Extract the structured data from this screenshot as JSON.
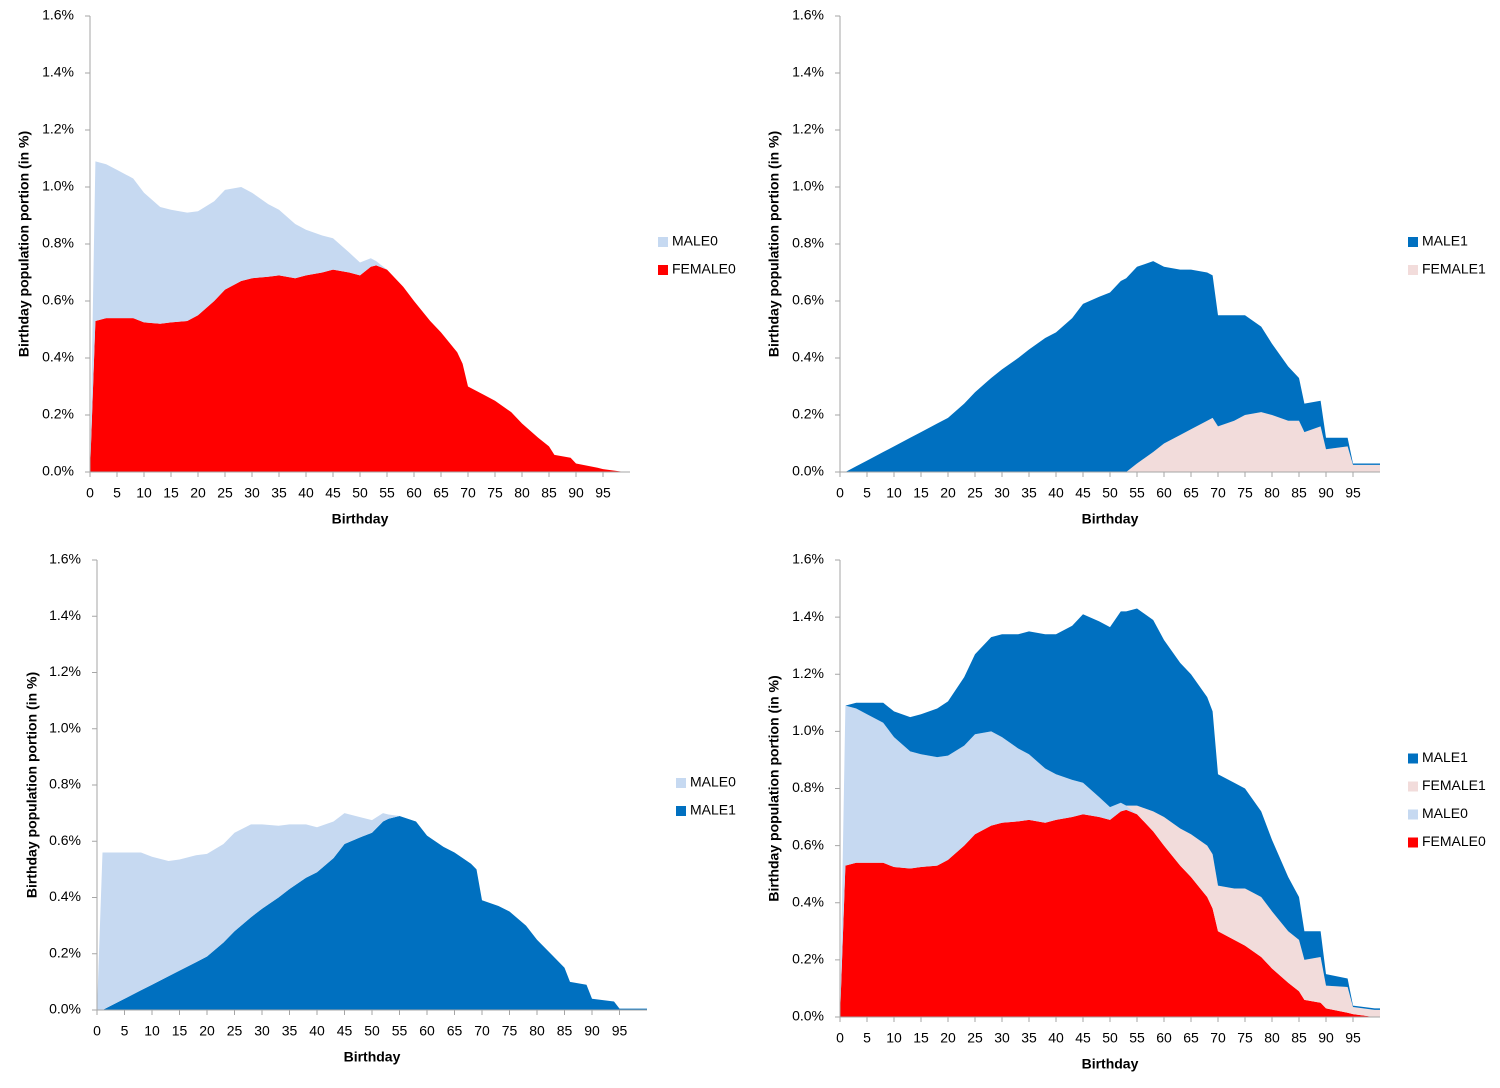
{
  "chart_data": [
    {
      "type": "area",
      "stacked": true,
      "xlabel": "Birthday",
      "ylabel": "Birthday population portion  (in %)",
      "legend": "right",
      "x": [
        0,
        1,
        3,
        5,
        8,
        10,
        13,
        15,
        18,
        20,
        23,
        25,
        28,
        30,
        33,
        35,
        38,
        40,
        43,
        45,
        48,
        50,
        52,
        53,
        55,
        58,
        60,
        63,
        65,
        68,
        69,
        70,
        73,
        75,
        78,
        80,
        83,
        85,
        86,
        89,
        90,
        94,
        95,
        99,
        100
      ],
      "xlim": [
        0,
        100
      ],
      "xticks": [
        0,
        5,
        10,
        15,
        20,
        25,
        30,
        35,
        40,
        45,
        50,
        55,
        60,
        65,
        70,
        75,
        80,
        85,
        90,
        95
      ],
      "ylim": [
        0,
        1.6
      ],
      "yticks": [
        {
          "value": 0,
          "label": "0.0%"
        },
        {
          "value": 0.2,
          "label": "0.2%"
        },
        {
          "value": 0.4,
          "label": "0.4%"
        },
        {
          "value": 0.6,
          "label": "0.6%"
        },
        {
          "value": 0.8,
          "label": "0.8%"
        },
        {
          "value": 1.0,
          "label": "1.0%"
        },
        {
          "value": 1.2,
          "label": "1.2%"
        },
        {
          "value": 1.4,
          "label": "1.4%"
        },
        {
          "value": 1.6,
          "label": "1.6%"
        }
      ],
      "series": [
        {
          "name": "MALE0",
          "color": "#c6d9f1",
          "values": [
            0,
            0.56,
            0.54,
            0.52,
            0.49,
            0.455,
            0.41,
            0.395,
            0.38,
            0.365,
            0.35,
            0.35,
            0.33,
            0.3,
            0.255,
            0.23,
            0.19,
            0.16,
            0.13,
            0.11,
            0.07,
            0.045,
            0.03,
            0.015,
            0,
            0,
            0,
            0,
            0,
            0,
            0,
            0,
            0,
            0,
            0,
            0,
            0,
            0,
            0,
            0,
            0,
            0,
            0,
            0,
            0
          ]
        },
        {
          "name": "FEMALE0",
          "color": "#ff0000",
          "values": [
            0,
            0.53,
            0.54,
            0.54,
            0.54,
            0.525,
            0.52,
            0.525,
            0.53,
            0.55,
            0.6,
            0.64,
            0.67,
            0.68,
            0.685,
            0.69,
            0.68,
            0.69,
            0.7,
            0.71,
            0.7,
            0.69,
            0.72,
            0.725,
            0.71,
            0.65,
            0.6,
            0.53,
            0.49,
            0.42,
            0.38,
            0.3,
            0.27,
            0.25,
            0.21,
            0.17,
            0.12,
            0.09,
            0.06,
            0.05,
            0.03,
            0.015,
            0.01,
            0,
            0
          ]
        }
      ]
    },
    {
      "type": "area",
      "stacked": true,
      "xlabel": "Birthday",
      "ylabel": "Birthday population portion  (in %)",
      "legend": "right",
      "x": [
        0,
        1,
        3,
        5,
        8,
        10,
        13,
        15,
        18,
        20,
        23,
        25,
        28,
        30,
        33,
        35,
        38,
        40,
        43,
        45,
        48,
        50,
        52,
        53,
        55,
        58,
        60,
        63,
        65,
        68,
        69,
        70,
        73,
        75,
        78,
        80,
        83,
        85,
        86,
        89,
        90,
        94,
        95,
        99,
        100
      ],
      "xlim": [
        0,
        100
      ],
      "xticks": [
        0,
        5,
        10,
        15,
        20,
        25,
        30,
        35,
        40,
        45,
        50,
        55,
        60,
        65,
        70,
        75,
        80,
        85,
        90,
        95
      ],
      "ylim": [
        0,
        1.6
      ],
      "yticks": [
        {
          "value": 0,
          "label": "0.0%"
        },
        {
          "value": 0.2,
          "label": "0.2%"
        },
        {
          "value": 0.4,
          "label": "0.4%"
        },
        {
          "value": 0.6,
          "label": "0.6%"
        },
        {
          "value": 0.8,
          "label": "0.8%"
        },
        {
          "value": 1.0,
          "label": "1.0%"
        },
        {
          "value": 1.2,
          "label": "1.2%"
        },
        {
          "value": 1.4,
          "label": "1.4%"
        },
        {
          "value": 1.6,
          "label": "1.6%"
        }
      ],
      "series": [
        {
          "name": "MALE1",
          "color": "#0070c0",
          "values": [
            0,
            0,
            0.02,
            0.04,
            0.07,
            0.09,
            0.12,
            0.14,
            0.17,
            0.19,
            0.24,
            0.28,
            0.33,
            0.36,
            0.4,
            0.43,
            0.47,
            0.49,
            0.54,
            0.59,
            0.615,
            0.63,
            0.67,
            0.68,
            0.69,
            0.67,
            0.62,
            0.58,
            0.56,
            0.52,
            0.5,
            0.39,
            0.37,
            0.35,
            0.3,
            0.25,
            0.19,
            0.15,
            0.1,
            0.09,
            0.04,
            0.03,
            0.005,
            0.005,
            0.005
          ]
        },
        {
          "name": "FEMALE1",
          "color": "#f2dcdb",
          "values": [
            0,
            0,
            0,
            0,
            0,
            0,
            0,
            0,
            0,
            0,
            0,
            0,
            0,
            0,
            0,
            0,
            0,
            0,
            0,
            0,
            0,
            0,
            0,
            0,
            0.03,
            0.07,
            0.1,
            0.13,
            0.15,
            0.18,
            0.19,
            0.16,
            0.18,
            0.2,
            0.21,
            0.2,
            0.18,
            0.18,
            0.14,
            0.16,
            0.08,
            0.09,
            0.025,
            0.025,
            0.025
          ]
        }
      ]
    },
    {
      "type": "area",
      "stacked": true,
      "xlabel": "Birthday",
      "ylabel": "Birthday population portion  (in %)",
      "legend": "right",
      "x": [
        0,
        1,
        3,
        5,
        8,
        10,
        13,
        15,
        18,
        20,
        23,
        25,
        28,
        30,
        33,
        35,
        38,
        40,
        43,
        45,
        48,
        50,
        52,
        53,
        55,
        58,
        60,
        63,
        65,
        68,
        69,
        70,
        73,
        75,
        78,
        80,
        83,
        85,
        86,
        89,
        90,
        94,
        95,
        99,
        100
      ],
      "xlim": [
        0,
        100
      ],
      "xticks": [
        0,
        5,
        10,
        15,
        20,
        25,
        30,
        35,
        40,
        45,
        50,
        55,
        60,
        65,
        70,
        75,
        80,
        85,
        90,
        95
      ],
      "ylim": [
        0,
        1.6
      ],
      "yticks": [
        {
          "value": 0,
          "label": "0.0%"
        },
        {
          "value": 0.2,
          "label": "0.2%"
        },
        {
          "value": 0.4,
          "label": "0.4%"
        },
        {
          "value": 0.6,
          "label": "0.6%"
        },
        {
          "value": 0.8,
          "label": "0.8%"
        },
        {
          "value": 1.0,
          "label": "1.0%"
        },
        {
          "value": 1.2,
          "label": "1.2%"
        },
        {
          "value": 1.4,
          "label": "1.4%"
        },
        {
          "value": 1.6,
          "label": "1.6%"
        }
      ],
      "series": [
        {
          "name": "MALE0",
          "color": "#c6d9f1",
          "values": [
            0,
            0.56,
            0.54,
            0.52,
            0.49,
            0.455,
            0.41,
            0.395,
            0.38,
            0.365,
            0.35,
            0.35,
            0.33,
            0.3,
            0.255,
            0.23,
            0.19,
            0.16,
            0.13,
            0.11,
            0.07,
            0.045,
            0.03,
            0.015,
            0,
            0,
            0,
            0,
            0,
            0,
            0,
            0,
            0,
            0,
            0,
            0,
            0,
            0,
            0,
            0,
            0,
            0,
            0,
            0,
            0
          ]
        },
        {
          "name": "MALE1",
          "color": "#0070c0",
          "values": [
            0,
            0,
            0.02,
            0.04,
            0.07,
            0.09,
            0.12,
            0.14,
            0.17,
            0.19,
            0.24,
            0.28,
            0.33,
            0.36,
            0.4,
            0.43,
            0.47,
            0.49,
            0.54,
            0.59,
            0.615,
            0.63,
            0.67,
            0.68,
            0.69,
            0.67,
            0.62,
            0.58,
            0.56,
            0.52,
            0.5,
            0.39,
            0.37,
            0.35,
            0.3,
            0.25,
            0.19,
            0.15,
            0.1,
            0.09,
            0.04,
            0.03,
            0.005,
            0.005,
            0.005
          ]
        }
      ]
    },
    {
      "type": "area",
      "stacked": true,
      "xlabel": "Birthday",
      "ylabel": "Birthday population portion  (in %)",
      "legend": "right",
      "x": [
        0,
        1,
        3,
        5,
        8,
        10,
        13,
        15,
        18,
        20,
        23,
        25,
        28,
        30,
        33,
        35,
        38,
        40,
        43,
        45,
        48,
        50,
        52,
        53,
        55,
        58,
        60,
        63,
        65,
        68,
        69,
        70,
        73,
        75,
        78,
        80,
        83,
        85,
        86,
        89,
        90,
        94,
        95,
        99,
        100
      ],
      "xlim": [
        0,
        100
      ],
      "xticks": [
        0,
        5,
        10,
        15,
        20,
        25,
        30,
        35,
        40,
        45,
        50,
        55,
        60,
        65,
        70,
        75,
        80,
        85,
        90,
        95
      ],
      "ylim": [
        0,
        1.6
      ],
      "yticks": [
        {
          "value": 0,
          "label": "0.0%"
        },
        {
          "value": 0.2,
          "label": "0.2%"
        },
        {
          "value": 0.4,
          "label": "0.4%"
        },
        {
          "value": 0.6,
          "label": "0.6%"
        },
        {
          "value": 0.8,
          "label": "0.8%"
        },
        {
          "value": 1.0,
          "label": "1.0%"
        },
        {
          "value": 1.2,
          "label": "1.2%"
        },
        {
          "value": 1.4,
          "label": "1.4%"
        },
        {
          "value": 1.6,
          "label": "1.6%"
        }
      ],
      "series": [
        {
          "name": "MALE1",
          "color": "#0070c0",
          "values": [
            0,
            0,
            0.02,
            0.04,
            0.07,
            0.09,
            0.12,
            0.14,
            0.17,
            0.19,
            0.24,
            0.28,
            0.33,
            0.36,
            0.4,
            0.43,
            0.47,
            0.49,
            0.54,
            0.59,
            0.615,
            0.63,
            0.67,
            0.68,
            0.69,
            0.67,
            0.62,
            0.58,
            0.56,
            0.52,
            0.5,
            0.39,
            0.37,
            0.35,
            0.3,
            0.25,
            0.19,
            0.15,
            0.1,
            0.09,
            0.04,
            0.03,
            0.005,
            0.005,
            0.005
          ]
        },
        {
          "name": "FEMALE1",
          "color": "#f2dcdb",
          "values": [
            0,
            0,
            0,
            0,
            0,
            0,
            0,
            0,
            0,
            0,
            0,
            0,
            0,
            0,
            0,
            0,
            0,
            0,
            0,
            0,
            0,
            0,
            0,
            0,
            0.03,
            0.07,
            0.1,
            0.13,
            0.15,
            0.18,
            0.19,
            0.16,
            0.18,
            0.2,
            0.21,
            0.2,
            0.18,
            0.18,
            0.14,
            0.16,
            0.08,
            0.09,
            0.025,
            0.025,
            0.025
          ]
        },
        {
          "name": "MALE0",
          "color": "#c6d9f1",
          "values": [
            0,
            0.56,
            0.54,
            0.52,
            0.49,
            0.455,
            0.41,
            0.395,
            0.38,
            0.365,
            0.35,
            0.35,
            0.33,
            0.3,
            0.255,
            0.23,
            0.19,
            0.16,
            0.13,
            0.11,
            0.07,
            0.045,
            0.03,
            0.015,
            0,
            0,
            0,
            0,
            0,
            0,
            0,
            0,
            0,
            0,
            0,
            0,
            0,
            0,
            0,
            0,
            0,
            0,
            0,
            0,
            0
          ]
        },
        {
          "name": "FEMALE0",
          "color": "#ff0000",
          "values": [
            0,
            0.53,
            0.54,
            0.54,
            0.54,
            0.525,
            0.52,
            0.525,
            0.53,
            0.55,
            0.6,
            0.64,
            0.67,
            0.68,
            0.685,
            0.69,
            0.68,
            0.69,
            0.7,
            0.71,
            0.7,
            0.69,
            0.72,
            0.725,
            0.71,
            0.65,
            0.6,
            0.53,
            0.49,
            0.42,
            0.38,
            0.3,
            0.27,
            0.25,
            0.21,
            0.17,
            0.12,
            0.09,
            0.06,
            0.05,
            0.03,
            0.015,
            0.01,
            0,
            0
          ]
        }
      ]
    }
  ]
}
